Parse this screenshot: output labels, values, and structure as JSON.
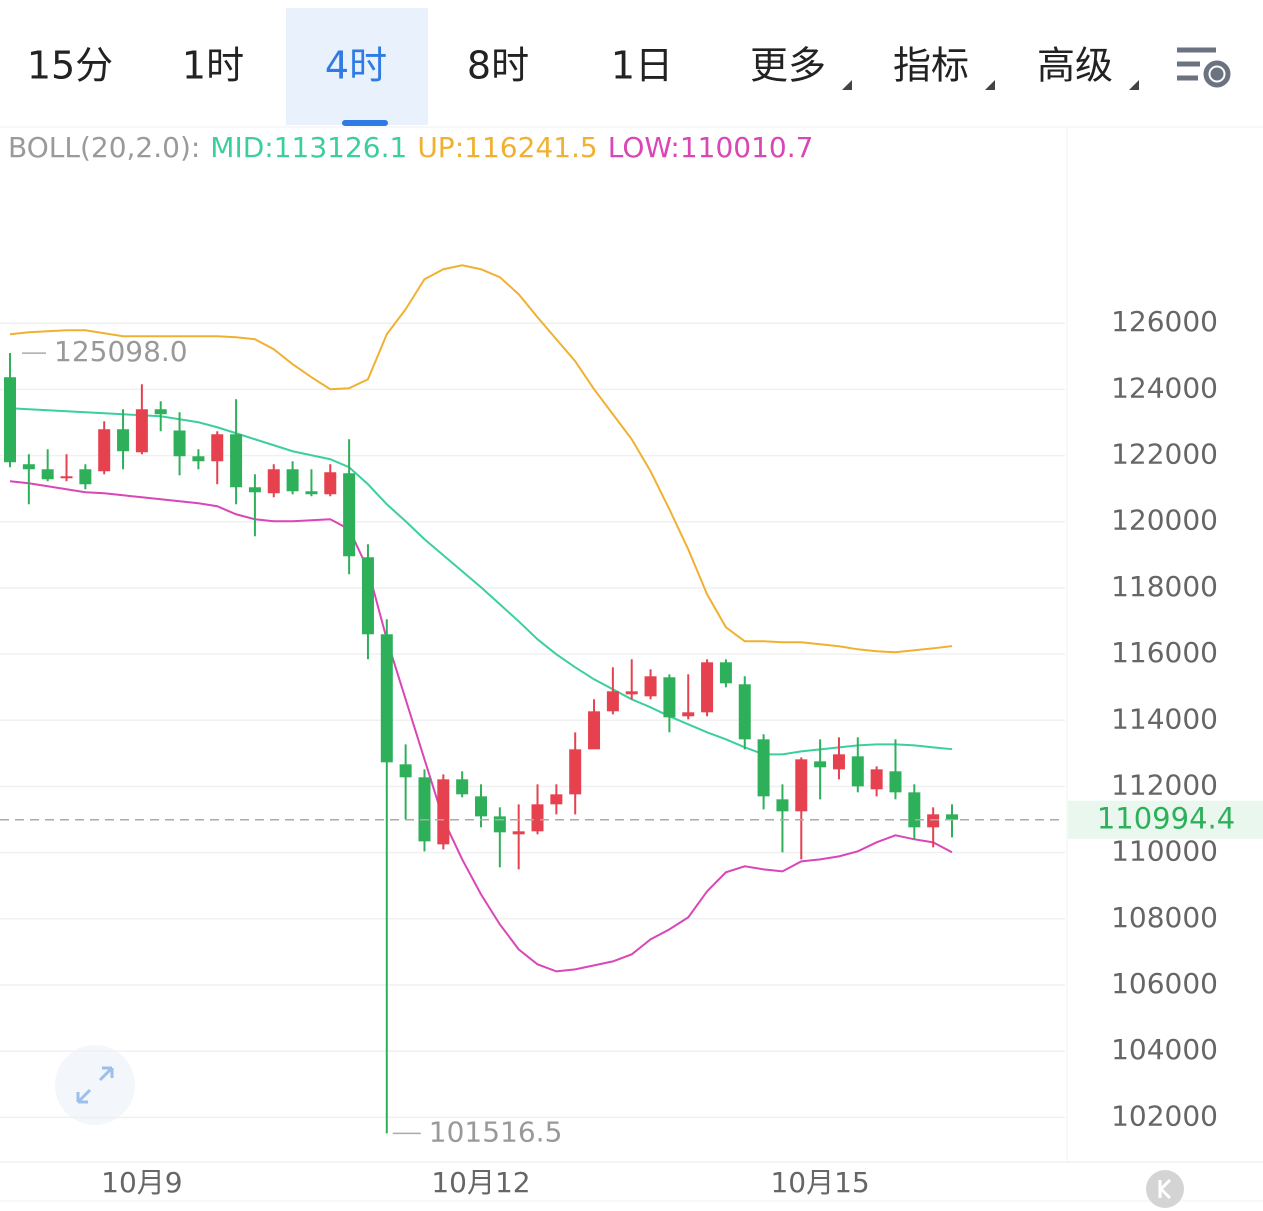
{
  "tabs": [
    "15分",
    "1时",
    "4时",
    "8时",
    "1日",
    "更多",
    "指标",
    "高级"
  ],
  "active_tab": 2,
  "chart_data": {
    "type": "candlestick",
    "indicator_label": "BOLL(20,2.0):",
    "categories": [
      null,
      null,
      null,
      null,
      null,
      null,
      null,
      "10月9",
      null,
      null,
      null,
      null,
      null,
      null,
      null,
      null,
      null,
      null,
      null,
      null,
      null,
      null,
      null,
      null,
      null,
      "10月12",
      null,
      null,
      null,
      null,
      null,
      null,
      null,
      null,
      null,
      null,
      null,
      null,
      null,
      null,
      null,
      null,
      null,
      "10月15",
      null,
      null,
      null,
      null,
      null,
      null,
      null
    ],
    "open": [
      124368,
      121738,
      121586,
      121314,
      121586,
      121526,
      122796,
      122100,
      123400,
      122758,
      121979,
      121828,
      122644,
      121042,
      120861,
      121586,
      120921,
      120831,
      121465,
      118926,
      116599,
      112669,
      112276,
      110250,
      112215,
      111701,
      111096,
      110553,
      110644,
      111460,
      111762,
      113122,
      114271,
      114785,
      114724,
      115299,
      114120,
      114241,
      115752,
      115087,
      113424,
      111611,
      111248,
      112759,
      112517,
      112910,
      111913,
      112457,
      111822,
      110764,
      111157
    ],
    "high": [
      125098,
      122040,
      122191,
      122040,
      121738,
      123037,
      123400,
      124156,
      123642,
      123310,
      122191,
      122735,
      123703,
      121435,
      121738,
      121828,
      121586,
      121738,
      122493,
      119319,
      117052,
      113273,
      112517,
      112366,
      112457,
      112064,
      111369,
      111460,
      112064,
      112064,
      113636,
      114634,
      115601,
      115843,
      115540,
      115389,
      115389,
      115843,
      115843,
      115329,
      113576,
      112064,
      112880,
      113424,
      113485,
      113485,
      112608,
      113424,
      112064,
      111369,
      111460
    ],
    "low": [
      121647,
      120528,
      121224,
      121224,
      120982,
      121435,
      121586,
      122040,
      122735,
      121405,
      121586,
      121133,
      120528,
      119561,
      120740,
      120831,
      120770,
      120770,
      118412,
      115843,
      101516.5,
      111006,
      110039,
      110099,
      111671,
      110764,
      109555,
      109495,
      110553,
      111157,
      111157,
      113182,
      114180,
      114634,
      114634,
      113636,
      114029,
      114120,
      114996,
      113122,
      111308,
      110008,
      109797,
      111611,
      112215,
      111822,
      111701,
      111611,
      110402,
      110160,
      110462
    ],
    "close": [
      121798,
      121586,
      121284,
      121375,
      121133,
      122796,
      122131,
      123400,
      123249,
      121979,
      121828,
      122644,
      121042,
      120891,
      121586,
      120921,
      120831,
      121496,
      118956,
      116599,
      112729,
      112276,
      110341,
      112215,
      111762,
      111096,
      110613,
      110644,
      111460,
      111762,
      113122,
      114271,
      114875,
      114875,
      115329,
      114089,
      114241,
      115752,
      115117,
      113424,
      111701,
      111248,
      112820,
      112578,
      112971,
      112003,
      112517,
      111822,
      110764,
      111157,
      110994.4
    ],
    "up_color": "#e5414e",
    "down_color": "#2eb05a",
    "series": [
      {
        "name": "MID",
        "label": "MID:113126.1",
        "color": "#3ccf9e",
        "values": [
          123430,
          123400,
          123370,
          123340,
          123310,
          123279,
          123249,
          123219,
          123189,
          123098,
          123007,
          122856,
          122675,
          122493,
          122312,
          122131,
          122010,
          121889,
          121647,
          121133,
          120528,
          120014,
          119470,
          118987,
          118503,
          118019,
          117505,
          116991,
          116447,
          115994,
          115601,
          115238,
          114936,
          114634,
          114392,
          114120,
          113878,
          113636,
          113424,
          113182,
          112971,
          112971,
          113061,
          113122,
          113182,
          113243,
          113273,
          113273,
          113243,
          113182,
          113126.1
        ]
      },
      {
        "name": "UP",
        "label": "UP:116241.5",
        "color": "#f0b132",
        "values": [
          125667,
          125728,
          125758,
          125788,
          125788,
          125698,
          125607,
          125607,
          125607,
          125607,
          125607,
          125607,
          125577,
          125516,
          125214,
          124761,
          124368,
          124005,
          124035,
          124307,
          125667,
          126423,
          127330,
          127632,
          127753,
          127632,
          127391,
          126877,
          126181,
          125516,
          124851,
          124005,
          123249,
          122493,
          121526,
          120377,
          119168,
          117808,
          116810,
          116387,
          116387,
          116357,
          116357,
          116296,
          116236,
          116145,
          116085,
          116055,
          116115,
          116175,
          116241.5
        ]
      },
      {
        "name": "LOW",
        "label": "LOW:110010.7",
        "color": "#d946b6",
        "values": [
          121224,
          121163,
          121073,
          120982,
          120891,
          120861,
          120800,
          120740,
          120679,
          120619,
          120558,
          120468,
          120226,
          120075,
          120014,
          120014,
          120045,
          120075,
          119773,
          118563,
          116447,
          114634,
          112820,
          111006,
          109797,
          108739,
          107832,
          107076,
          106623,
          106411,
          106471,
          106592,
          106713,
          106925,
          107379,
          107681,
          108044,
          108830,
          109406,
          109587,
          109495,
          109434,
          109737,
          109797,
          109888,
          110039,
          110311,
          110523,
          110402,
          110311,
          110010.7
        ]
      }
    ],
    "high_marker": {
      "value": 125098.0,
      "label": "125098.0"
    },
    "low_marker": 101516.5,
    "last_price": 110994.4,
    "ylim": [
      100650,
      131900
    ],
    "yticks": [
      102000,
      104000,
      106000,
      108000,
      110000,
      112000,
      114000,
      116000,
      118000,
      120000,
      122000,
      124000,
      126000
    ],
    "grid": true
  }
}
